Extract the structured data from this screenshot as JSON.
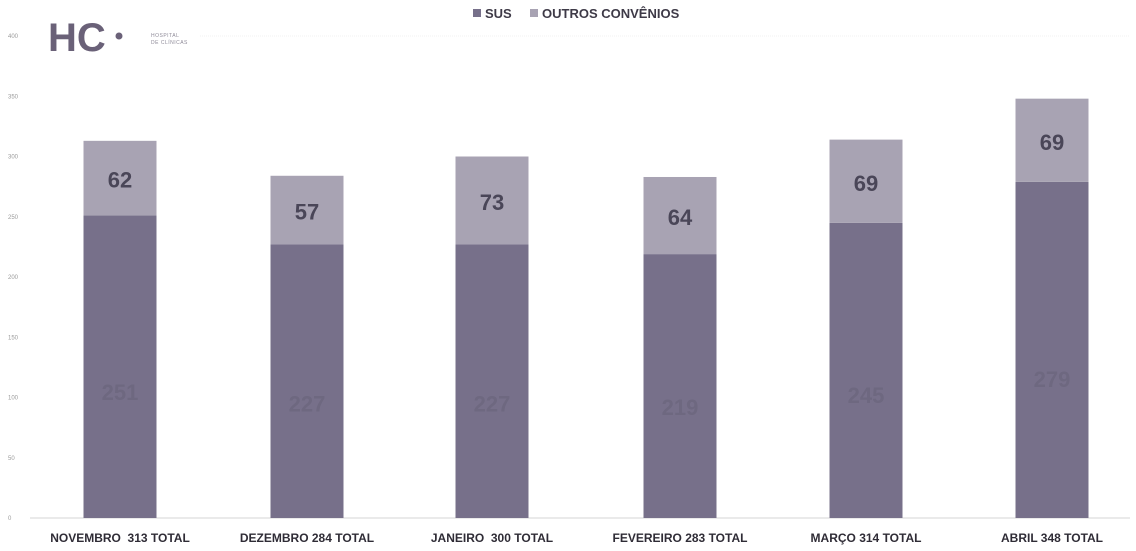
{
  "logo": {
    "mark": "HC",
    "line1": "HOSPITAL",
    "line2": "DE CLÍNICAS"
  },
  "chart_data": {
    "type": "bar",
    "stacked": true,
    "categories": [
      "NOVEMBRO  313 TOTAL",
      "DEZEMBRO 284 TOTAL",
      "JANEIRO  300 TOTAL",
      "FEVEREIRO 283 TOTAL",
      "MARÇO 314 TOTAL",
      "ABRIL 348 TOTAL"
    ],
    "series": [
      {
        "name": "SUS",
        "values": [
          251,
          227,
          227,
          219,
          245,
          279
        ],
        "color": "#77708a"
      },
      {
        "name": "OUTROS CONVÊNIOS",
        "values": [
          62,
          57,
          73,
          64,
          69,
          69
        ],
        "color": "#a8a3b3"
      }
    ],
    "value_label_colors": [
      "#6e6880",
      "#4a4658"
    ],
    "ylim": [
      0,
      400
    ],
    "yticks": [
      "0",
      "50",
      "100",
      "150",
      "200",
      "250",
      "300",
      "350",
      "400"
    ],
    "legend_position": "top-center",
    "grid": false
  }
}
